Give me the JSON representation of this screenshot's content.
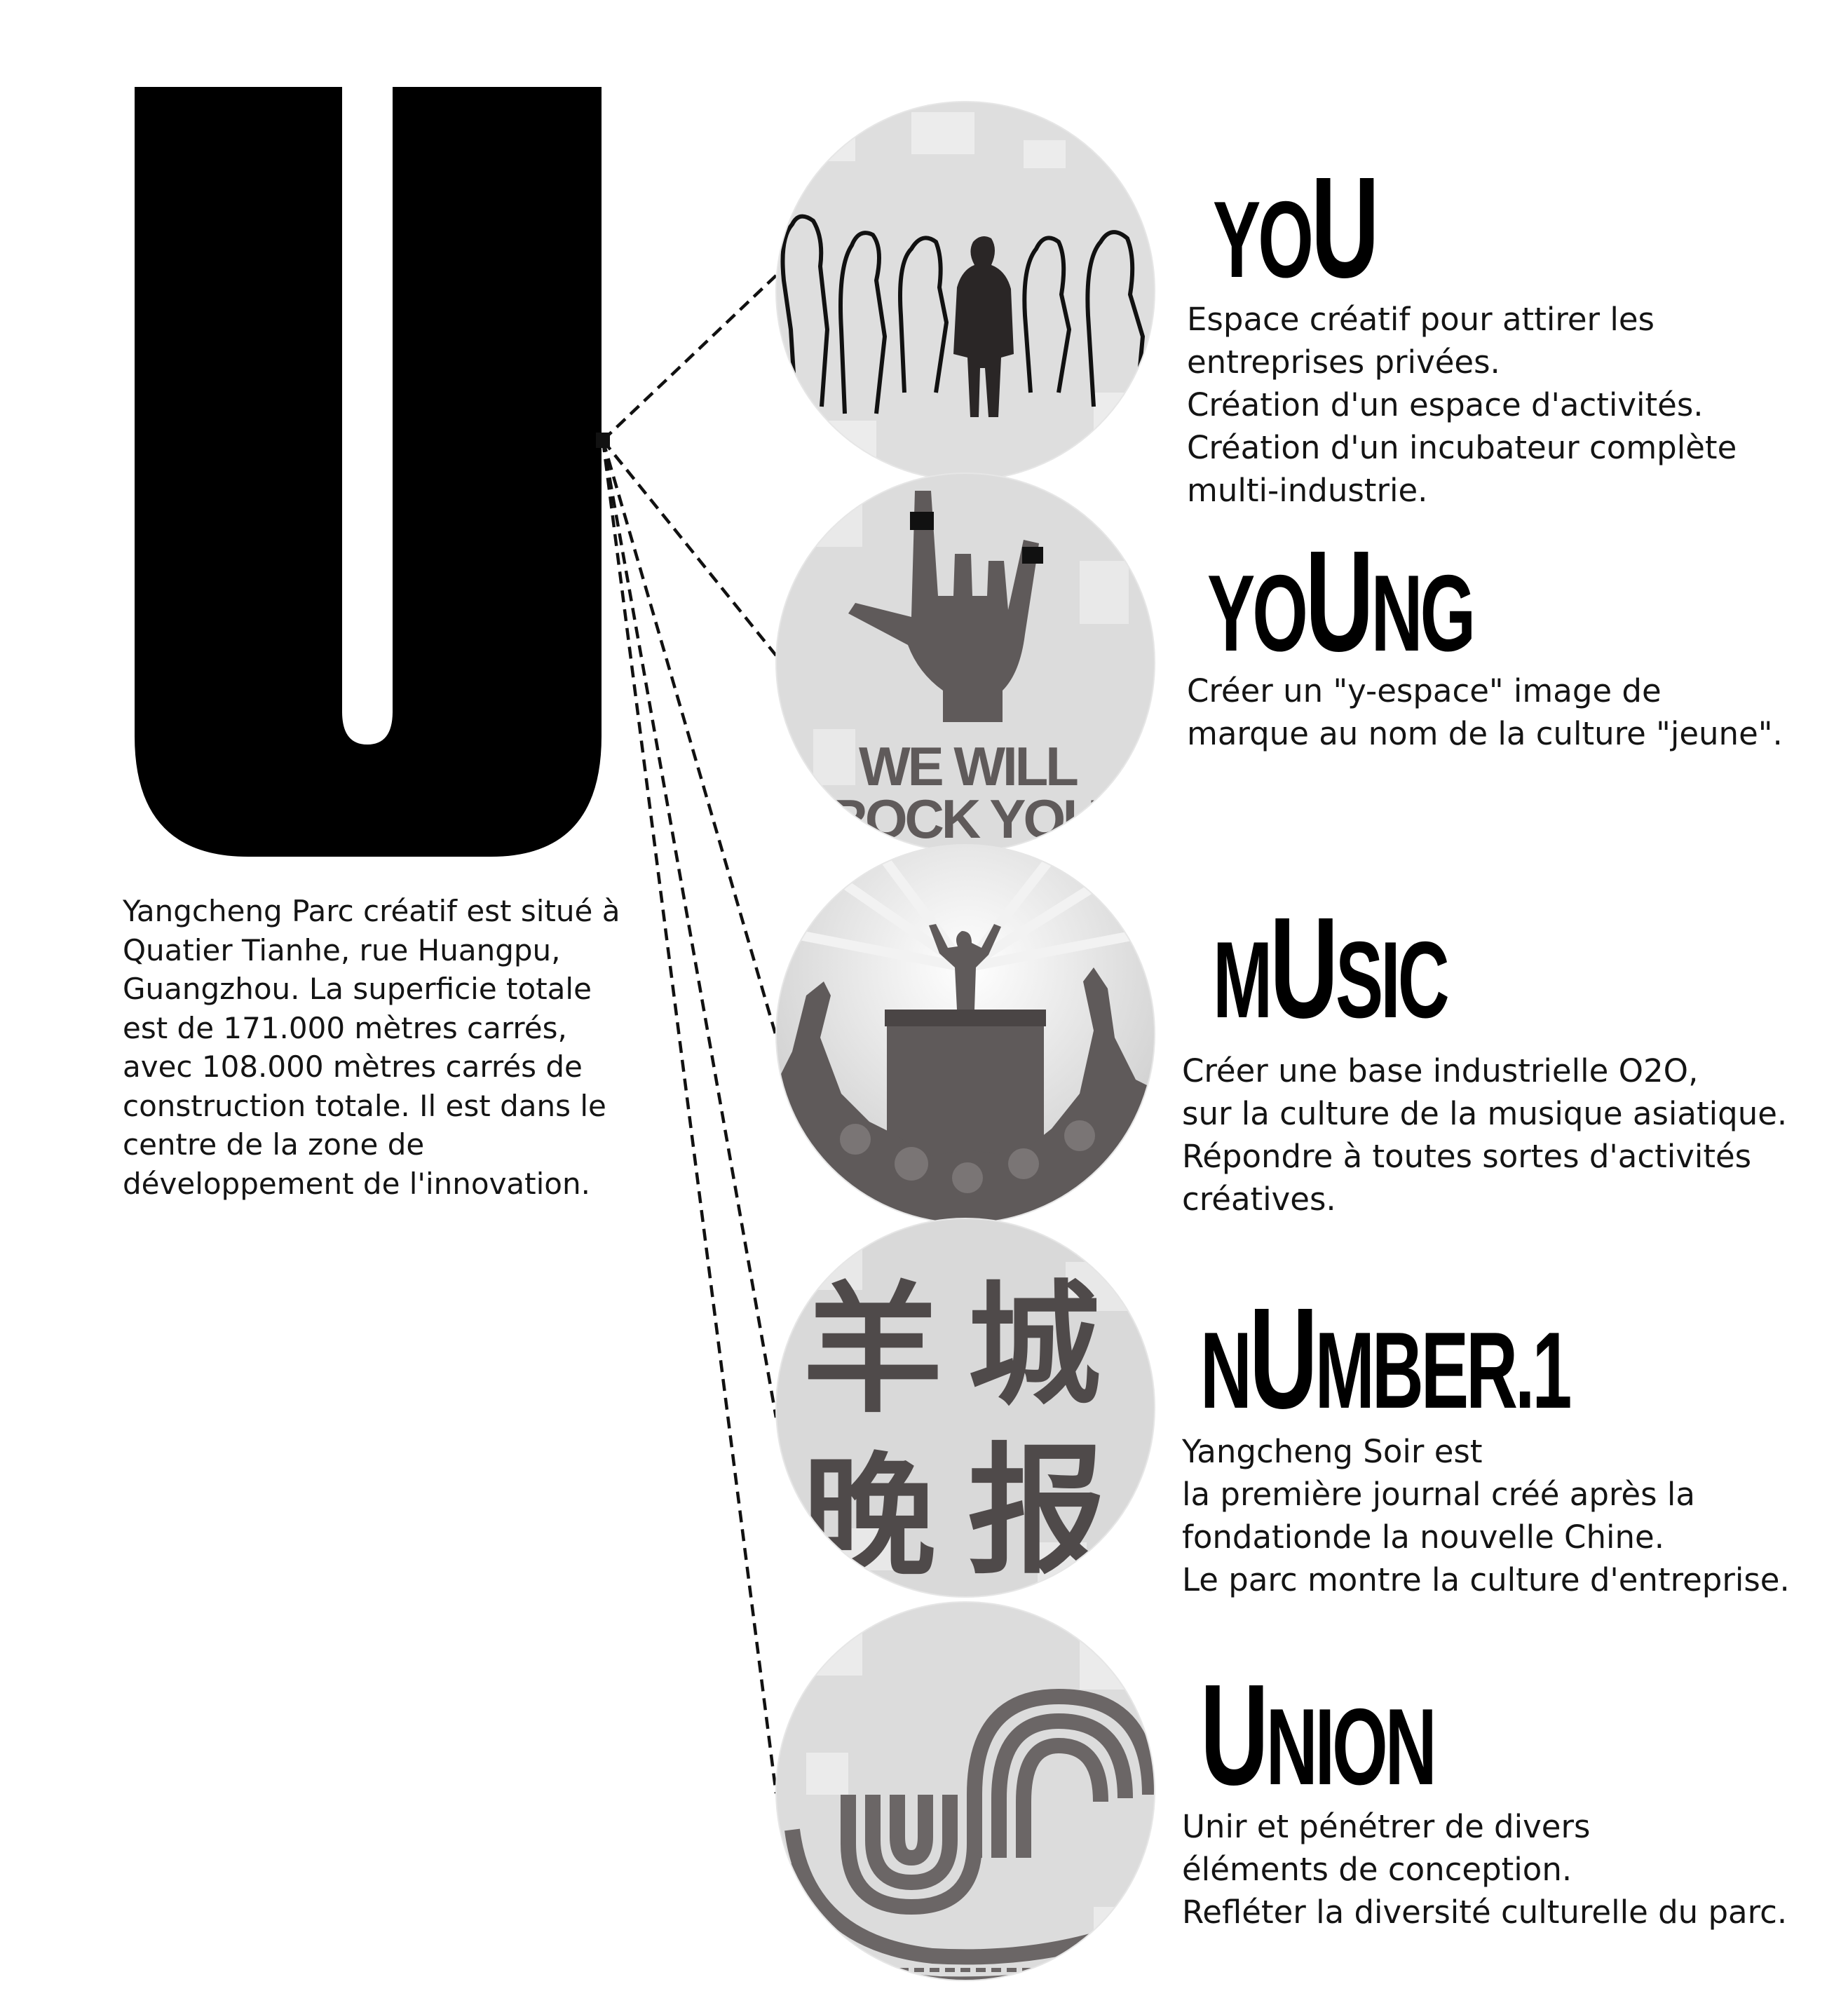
{
  "intro": "Yangcheng Parc créatif est situé à Quatier Tianhe, rue Huangpu, Guangzhou. La superficie totale est de 171.000 mètres carrés, avec 108.000 mètres carrés de construction totale. Il est dans le centre de la zone de développement de l'innovation.",
  "sections": [
    {
      "label_before": "YO",
      "label_u": "U",
      "label_after": "",
      "lines": [
        "Espace créatif pour attirer les",
        "entreprises privées.",
        "Création d'un espace d'activités.",
        "Création d'un incubateur complète",
        "multi-industrie."
      ]
    },
    {
      "label_before": "YO",
      "label_u": "U",
      "label_after": "NG",
      "lines": [
        "Créer un \"y-espace\" image de",
        "marque au nom de la culture \"jeune\"."
      ],
      "image_text": [
        "WE WILL",
        "ROCK YOU"
      ]
    },
    {
      "label_before": "M",
      "label_u": "U",
      "label_after": "SIC",
      "lines": [
        "Créer une base industrielle O2O,",
        "sur la culture de la musique asiatique.",
        "Répondre à toutes sortes d'activités",
        "créatives."
      ]
    },
    {
      "label_before": "N",
      "label_u": "U",
      "label_after": "MBER.1",
      "lines": [
        "Yangcheng Soir est",
        "la première journal créé après la",
        "fondationde la nouvelle Chine.",
        "Le parc montre la culture d'entreprise."
      ],
      "image_text": [
        "羊",
        "城",
        "晚",
        "报"
      ]
    },
    {
      "label_before": "",
      "label_u": "U",
      "label_after": "NION",
      "lines": [
        "Unir et pénétrer de divers",
        "éléments de conception.",
        "Refléter la diversité culturelle du parc."
      ]
    }
  ],
  "colors": {
    "big_letter": "#000000",
    "circle_bg": "#dcdcdc",
    "circle_art": "#5f5a5a"
  }
}
